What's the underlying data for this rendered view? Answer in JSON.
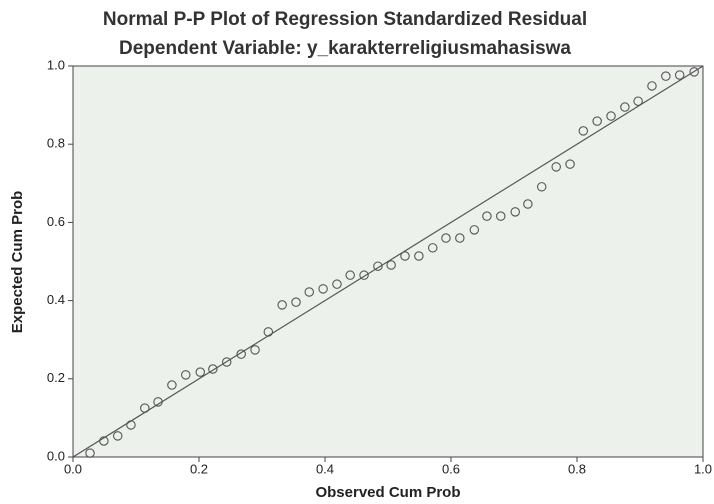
{
  "chart_data": {
    "type": "scatter",
    "title": "Normal P-P Plot of Regression Standardized Residual",
    "subtitle": "Dependent Variable: y_karakterreligiusmahasiswa",
    "x_label": "Observed Cum Prob",
    "y_label": "Expected Cum Prob",
    "x": [
      0.027,
      0.049,
      0.071,
      0.092,
      0.114,
      0.135,
      0.157,
      0.179,
      0.202,
      0.222,
      0.244,
      0.267,
      0.289,
      0.31,
      0.332,
      0.354,
      0.375,
      0.397,
      0.419,
      0.44,
      0.462,
      0.484,
      0.505,
      0.527,
      0.549,
      0.571,
      0.592,
      0.614,
      0.637,
      0.657,
      0.679,
      0.702,
      0.722,
      0.744,
      0.767,
      0.789,
      0.81,
      0.832,
      0.854,
      0.876,
      0.897,
      0.919,
      0.941,
      0.963,
      0.986
    ],
    "values": [
      0.01,
      0.041,
      0.054,
      0.082,
      0.125,
      0.141,
      0.184,
      0.21,
      0.217,
      0.225,
      0.243,
      0.263,
      0.274,
      0.32,
      0.389,
      0.396,
      0.422,
      0.43,
      0.442,
      0.465,
      0.465,
      0.488,
      0.491,
      0.514,
      0.514,
      0.535,
      0.56,
      0.56,
      0.581,
      0.616,
      0.616,
      0.627,
      0.647,
      0.691,
      0.742,
      0.749,
      0.834,
      0.859,
      0.872,
      0.895,
      0.91,
      0.949,
      0.974,
      0.977,
      0.985
    ],
    "color": "#555555",
    "xlim": [
      0,
      1
    ],
    "ylim": [
      0,
      1
    ],
    "xticks": [
      {
        "value": 0,
        "label": "0.0"
      },
      {
        "value": 0.2,
        "label": "0.2"
      },
      {
        "value": 0.4,
        "label": "0.4"
      },
      {
        "value": 0.6,
        "label": "0.6"
      },
      {
        "value": 0.8,
        "label": "0.8"
      },
      {
        "value": 1,
        "label": "1.0"
      }
    ],
    "yticks": [
      {
        "value": 0,
        "label": "0.0"
      },
      {
        "value": 0.2,
        "label": "0.2"
      },
      {
        "value": 0.4,
        "label": "0.4"
      },
      {
        "value": 0.6,
        "label": "0.6"
      },
      {
        "value": 0.8,
        "label": "0.8"
      },
      {
        "value": 1,
        "label": "1.0"
      }
    ],
    "reference_line": true
  }
}
